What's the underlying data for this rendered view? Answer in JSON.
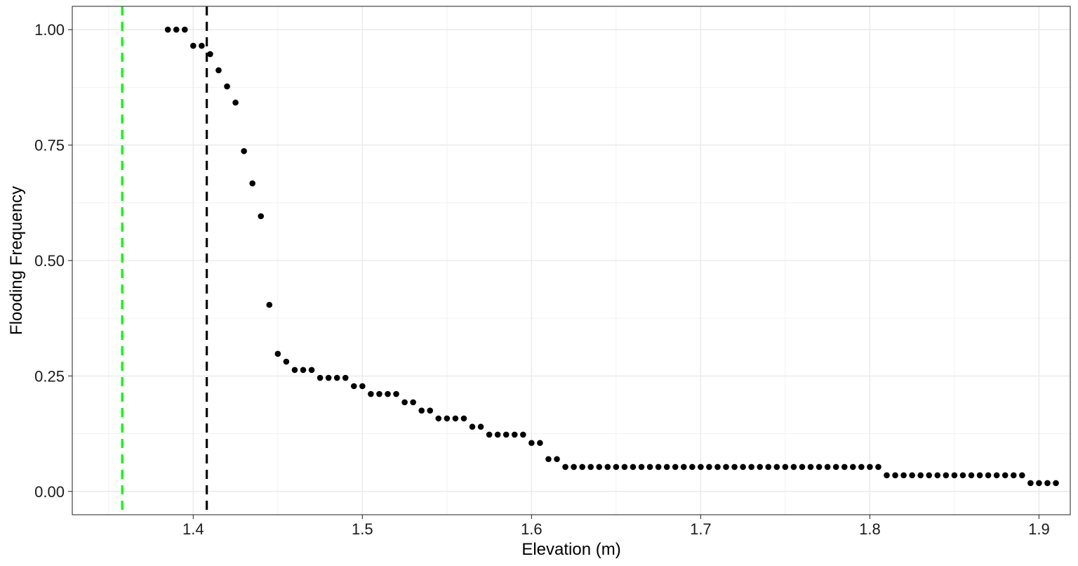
{
  "chart_data": {
    "type": "scatter",
    "title": "",
    "xlabel": "Elevation (m)",
    "ylabel": "Flooding Frequency",
    "xlim": [
      1.3285,
      1.9185
    ],
    "ylim": [
      -0.0505,
      1.0505
    ],
    "x_ticks": [
      1.4,
      1.5,
      1.6,
      1.7,
      1.8,
      1.9
    ],
    "x_tick_labels": [
      "1.4",
      "1.5",
      "1.6",
      "1.7",
      "1.8",
      "1.9"
    ],
    "y_ticks": [
      0,
      0.25,
      0.5,
      0.75,
      1
    ],
    "y_tick_labels": [
      "0.00",
      "0.25",
      "0.50",
      "0.75",
      "1.00"
    ],
    "grid": true,
    "legend": "none",
    "reference_lines": [
      {
        "x": 1.358,
        "color": "#00ff00",
        "style": "dashed"
      },
      {
        "x": 1.408,
        "color": "#000000",
        "style": "dashed"
      }
    ],
    "point_color": "#000000",
    "points": [
      [
        1.385,
        1.0
      ],
      [
        1.39,
        1.0
      ],
      [
        1.395,
        1.0
      ],
      [
        1.4,
        0.965
      ],
      [
        1.405,
        0.965
      ],
      [
        1.41,
        0.947
      ],
      [
        1.415,
        0.912
      ],
      [
        1.42,
        0.877
      ],
      [
        1.425,
        0.842
      ],
      [
        1.43,
        0.737
      ],
      [
        1.435,
        0.667
      ],
      [
        1.44,
        0.596
      ],
      [
        1.445,
        0.404
      ],
      [
        1.45,
        0.298
      ],
      [
        1.455,
        0.281
      ],
      [
        1.46,
        0.263
      ],
      [
        1.465,
        0.263
      ],
      [
        1.47,
        0.263
      ],
      [
        1.475,
        0.246
      ],
      [
        1.48,
        0.246
      ],
      [
        1.485,
        0.246
      ],
      [
        1.49,
        0.246
      ],
      [
        1.495,
        0.228
      ],
      [
        1.5,
        0.228
      ],
      [
        1.505,
        0.211
      ],
      [
        1.51,
        0.211
      ],
      [
        1.515,
        0.211
      ],
      [
        1.52,
        0.211
      ],
      [
        1.525,
        0.193
      ],
      [
        1.53,
        0.193
      ],
      [
        1.535,
        0.175
      ],
      [
        1.54,
        0.175
      ],
      [
        1.545,
        0.158
      ],
      [
        1.55,
        0.158
      ],
      [
        1.555,
        0.158
      ],
      [
        1.56,
        0.158
      ],
      [
        1.565,
        0.14
      ],
      [
        1.57,
        0.14
      ],
      [
        1.575,
        0.123
      ],
      [
        1.58,
        0.123
      ],
      [
        1.585,
        0.123
      ],
      [
        1.59,
        0.123
      ],
      [
        1.595,
        0.123
      ],
      [
        1.6,
        0.105
      ],
      [
        1.605,
        0.105
      ],
      [
        1.61,
        0.07
      ],
      [
        1.615,
        0.07
      ],
      [
        1.62,
        0.053
      ],
      [
        1.625,
        0.053
      ],
      [
        1.63,
        0.053
      ],
      [
        1.635,
        0.053
      ],
      [
        1.64,
        0.053
      ],
      [
        1.645,
        0.053
      ],
      [
        1.65,
        0.053
      ],
      [
        1.655,
        0.053
      ],
      [
        1.66,
        0.053
      ],
      [
        1.665,
        0.053
      ],
      [
        1.67,
        0.053
      ],
      [
        1.675,
        0.053
      ],
      [
        1.68,
        0.053
      ],
      [
        1.685,
        0.053
      ],
      [
        1.69,
        0.053
      ],
      [
        1.695,
        0.053
      ],
      [
        1.7,
        0.053
      ],
      [
        1.705,
        0.053
      ],
      [
        1.71,
        0.053
      ],
      [
        1.715,
        0.053
      ],
      [
        1.72,
        0.053
      ],
      [
        1.725,
        0.053
      ],
      [
        1.73,
        0.053
      ],
      [
        1.735,
        0.053
      ],
      [
        1.74,
        0.053
      ],
      [
        1.745,
        0.053
      ],
      [
        1.75,
        0.053
      ],
      [
        1.755,
        0.053
      ],
      [
        1.76,
        0.053
      ],
      [
        1.765,
        0.053
      ],
      [
        1.77,
        0.053
      ],
      [
        1.775,
        0.053
      ],
      [
        1.78,
        0.053
      ],
      [
        1.785,
        0.053
      ],
      [
        1.79,
        0.053
      ],
      [
        1.795,
        0.053
      ],
      [
        1.8,
        0.053
      ],
      [
        1.805,
        0.053
      ],
      [
        1.81,
        0.035
      ],
      [
        1.815,
        0.035
      ],
      [
        1.82,
        0.035
      ],
      [
        1.825,
        0.035
      ],
      [
        1.83,
        0.035
      ],
      [
        1.835,
        0.035
      ],
      [
        1.84,
        0.035
      ],
      [
        1.845,
        0.035
      ],
      [
        1.85,
        0.035
      ],
      [
        1.855,
        0.035
      ],
      [
        1.86,
        0.035
      ],
      [
        1.865,
        0.035
      ],
      [
        1.87,
        0.035
      ],
      [
        1.875,
        0.035
      ],
      [
        1.88,
        0.035
      ],
      [
        1.885,
        0.035
      ],
      [
        1.89,
        0.035
      ],
      [
        1.895,
        0.018
      ],
      [
        1.9,
        0.018
      ],
      [
        1.905,
        0.018
      ],
      [
        1.91,
        0.018
      ]
    ]
  }
}
